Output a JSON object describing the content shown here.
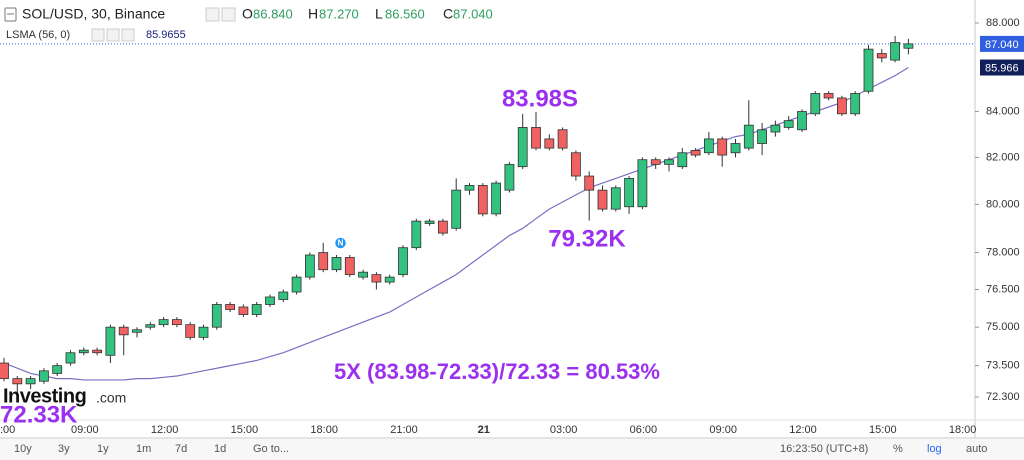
{
  "chart_data": {
    "type": "candlestick",
    "title": "SOL/USD, 30, Binance",
    "ohlc_legend": [
      {
        "label": "O",
        "value": "86.840"
      },
      {
        "label": "H",
        "value": "87.270"
      },
      {
        "label": "L",
        "value": "86.560"
      },
      {
        "label": "C",
        "value": "87.040"
      }
    ],
    "indicator_legend": {
      "name": "LSMA (56, 0)",
      "value": "85.9655"
    },
    "log": true,
    "ylim": [
      71.43,
      89.07
    ],
    "yticks": [
      {
        "value": 88,
        "label": "88.000"
      },
      {
        "value": 84,
        "label": "84.000"
      },
      {
        "value": 82,
        "label": "82.000"
      },
      {
        "value": 80,
        "label": "80.000"
      },
      {
        "value": 78,
        "label": "78.000"
      },
      {
        "value": 76.5,
        "label": "76.500"
      },
      {
        "value": 75,
        "label": "75.000"
      },
      {
        "value": 73.5,
        "label": "73.500"
      },
      {
        "value": 72.3,
        "label": "72.300"
      }
    ],
    "xtick_labels": [
      ":00",
      "09:00",
      "12:00",
      "15:00",
      "18:00",
      "21:00",
      "21",
      "03:00",
      "06:00",
      "09:00",
      "12:00",
      "15:00",
      "18:00"
    ],
    "up_color": "#33c27f",
    "down_color": "#f06262",
    "open": [
      73.6,
      73.0,
      72.8,
      72.9,
      73.2,
      73.6,
      74.0,
      74.1,
      73.9,
      75.0,
      74.8,
      75.0,
      75.1,
      75.3,
      75.1,
      74.6,
      75.0,
      75.9,
      75.8,
      75.5,
      75.9,
      76.1,
      76.4,
      77.0,
      78.0,
      77.3,
      77.8,
      77.0,
      77.1,
      76.8,
      77.1,
      78.2,
      79.2,
      79.3,
      79.0,
      80.6,
      80.8,
      79.6,
      80.6,
      81.6,
      83.3,
      82.8,
      83.2,
      82.2,
      81.2,
      80.6,
      79.8,
      79.9,
      79.9,
      81.9,
      81.7,
      81.6,
      82.3,
      82.2,
      82.8,
      82.2,
      82.4,
      82.6,
      83.1,
      83.3,
      83.2,
      83.9,
      84.8,
      84.6,
      83.9,
      84.9,
      86.6,
      86.3,
      86.84
    ],
    "high": [
      73.8,
      73.1,
      73.1,
      73.4,
      73.6,
      74.1,
      74.2,
      74.2,
      75.1,
      75.1,
      75.0,
      75.2,
      75.4,
      75.4,
      75.2,
      75.1,
      76.0,
      76.0,
      75.9,
      76.0,
      76.3,
      76.5,
      77.1,
      78.0,
      78.4,
      77.9,
      77.9,
      77.3,
      77.2,
      77.1,
      78.3,
      79.4,
      79.4,
      79.4,
      81.1,
      80.9,
      80.9,
      81.0,
      81.8,
      83.9,
      83.98,
      83.0,
      83.3,
      82.3,
      81.4,
      80.8,
      80.8,
      81.2,
      82.0,
      82.0,
      82.0,
      82.4,
      82.4,
      83.1,
      82.9,
      82.8,
      84.5,
      83.5,
      83.6,
      83.8,
      84.1,
      84.9,
      84.9,
      84.7,
      84.9,
      87.0,
      86.8,
      87.4,
      87.27
    ],
    "low": [
      72.9,
      72.33,
      72.6,
      72.8,
      73.1,
      73.5,
      73.9,
      73.9,
      73.6,
      73.9,
      74.6,
      74.9,
      75.0,
      75.0,
      74.5,
      74.5,
      74.9,
      75.6,
      75.4,
      75.4,
      75.8,
      76.0,
      76.3,
      76.9,
      77.2,
      77.2,
      77.0,
      76.9,
      76.5,
      76.7,
      77.0,
      78.1,
      79.1,
      78.7,
      78.9,
      80.4,
      79.5,
      79.5,
      80.5,
      81.5,
      82.3,
      82.3,
      82.3,
      81.0,
      79.32,
      79.7,
      79.7,
      79.6,
      79.8,
      81.5,
      81.4,
      81.5,
      82.0,
      82.1,
      81.6,
      82.0,
      82.3,
      82.1,
      82.9,
      83.2,
      83.1,
      83.8,
      84.5,
      83.8,
      83.8,
      84.8,
      86.2,
      86.2,
      86.56
    ],
    "close": [
      73.0,
      72.8,
      73.0,
      73.3,
      73.5,
      74.0,
      74.1,
      74.0,
      75.0,
      74.7,
      74.9,
      75.1,
      75.3,
      75.1,
      74.6,
      75.0,
      75.9,
      75.7,
      75.5,
      75.9,
      76.2,
      76.4,
      77.0,
      77.9,
      77.3,
      77.8,
      77.1,
      77.2,
      76.8,
      77.0,
      78.2,
      79.3,
      79.3,
      78.8,
      80.6,
      80.8,
      79.6,
      80.9,
      81.7,
      83.3,
      82.4,
      82.4,
      82.4,
      81.2,
      80.6,
      79.8,
      80.7,
      81.1,
      81.9,
      81.7,
      81.9,
      82.2,
      82.1,
      82.8,
      82.1,
      82.6,
      83.4,
      83.2,
      83.4,
      83.6,
      84.0,
      84.8,
      84.6,
      83.9,
      84.8,
      86.8,
      86.4,
      87.1,
      87.04
    ],
    "lsma": {
      "color": "#7b6fc4",
      "values": [
        73.6,
        73.4,
        73.2,
        73.1,
        73.0,
        73.0,
        72.95,
        72.95,
        72.95,
        72.95,
        73.0,
        73.0,
        73.05,
        73.1,
        73.2,
        73.3,
        73.4,
        73.5,
        73.6,
        73.7,
        73.85,
        74.0,
        74.2,
        74.4,
        74.6,
        74.8,
        75.0,
        75.2,
        75.4,
        75.6,
        75.9,
        76.2,
        76.5,
        76.8,
        77.1,
        77.5,
        77.9,
        78.3,
        78.7,
        79.0,
        79.4,
        79.8,
        80.1,
        80.4,
        80.7,
        80.9,
        81.1,
        81.3,
        81.5,
        81.7,
        81.9,
        82.1,
        82.3,
        82.5,
        82.7,
        82.9,
        83.0,
        83.2,
        83.4,
        83.6,
        83.8,
        84.0,
        84.2,
        84.4,
        84.7,
        85.0,
        85.3,
        85.6,
        85.9655
      ]
    },
    "price_labels": [
      {
        "value": 87.04,
        "label": "87.040",
        "color": "#2f5fe0"
      },
      {
        "value": 85.9655,
        "label": "85.966",
        "color": "#131f5b"
      }
    ],
    "annotations": [
      "83.98S",
      "79.32K",
      "72.33K",
      "5X (83.98-72.33)/72.33 = 80.53%"
    ],
    "watermark": {
      "brand": "Investing",
      "suffix": ".com"
    },
    "marker": "N",
    "toolbar": {
      "ranges": [
        "10y",
        "3y",
        "1y",
        "1m",
        "7d",
        "1d"
      ],
      "goto": "Go to...",
      "time": "16:23:50 (UTC+8)",
      "options": [
        "%",
        "log",
        "auto"
      ]
    }
  }
}
